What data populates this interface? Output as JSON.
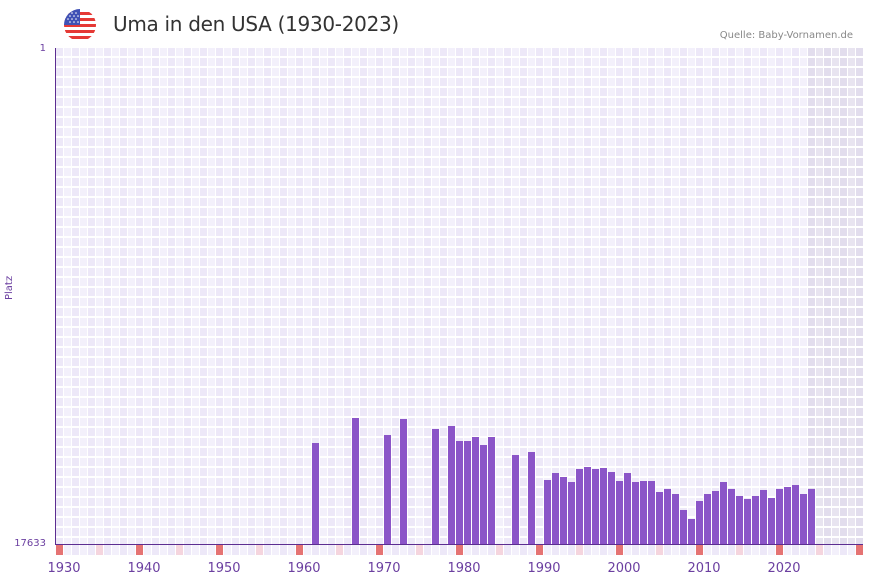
{
  "header": {
    "title": "Uma in den USA (1930-2023)",
    "source": "Quelle: Baby-Vornamen.de",
    "flag_icon": "us-flag-icon"
  },
  "colors": {
    "bar": "#8b55c8",
    "axis": "#5c2d91",
    "grid_col_a": "#ede8f8",
    "grid_col_b": "#f3f0fb",
    "future_shade_a": "#e2dded",
    "future_shade_b": "#e8e4f0",
    "decade_marker": "#e57373",
    "half_decade_marker": "#f5d5de",
    "label": "#6b3fa0"
  },
  "chart_data": {
    "type": "bar",
    "title": "Uma in den USA (1930-2023)",
    "xlabel": "",
    "ylabel": "Platz",
    "y_inverted": true,
    "ylim": [
      1,
      17633
    ],
    "xlim": [
      1928,
      2028
    ],
    "grid": true,
    "x_ticks": [
      1930,
      1940,
      1950,
      1960,
      1970,
      1980,
      1990,
      2000,
      2010,
      2020
    ],
    "y_ticks": [
      1,
      17633
    ],
    "categories": [
      1960,
      1965,
      1969,
      1971,
      1975,
      1977,
      1978,
      1979,
      1980,
      1981,
      1982,
      1985,
      1987,
      1989,
      1990,
      1991,
      1992,
      1993,
      1994,
      1995,
      1996,
      1997,
      1998,
      1999,
      2000,
      2001,
      2002,
      2003,
      2004,
      2005,
      2006,
      2007,
      2008,
      2009,
      2010,
      2011,
      2012,
      2013,
      2014,
      2015,
      2016,
      2017,
      2018,
      2019,
      2020,
      2021,
      2022
    ],
    "values": [
      14027,
      13138,
      13743,
      13174,
      13529,
      13423,
      13956,
      13956,
      13814,
      14098,
      13814,
      14453,
      14347,
      15342,
      15094,
      15236,
      15413,
      14951,
      14880,
      14951,
      14916,
      15058,
      15378,
      15094,
      15413,
      15378,
      15378,
      15769,
      15662,
      15840,
      16409,
      16729,
      16089,
      15840,
      15733,
      15413,
      15662,
      15911,
      16018,
      15911,
      15698,
      15982,
      15662,
      15591,
      15520,
      15840,
      15662
    ],
    "future_shaded_from": 2022
  },
  "axis": {
    "y_top_label": "1",
    "y_bottom_label": "17633",
    "y_title": "Platz",
    "x_labels": [
      "1930",
      "1940",
      "1950",
      "1960",
      "1970",
      "1980",
      "1990",
      "2000",
      "2010",
      "2020"
    ]
  }
}
